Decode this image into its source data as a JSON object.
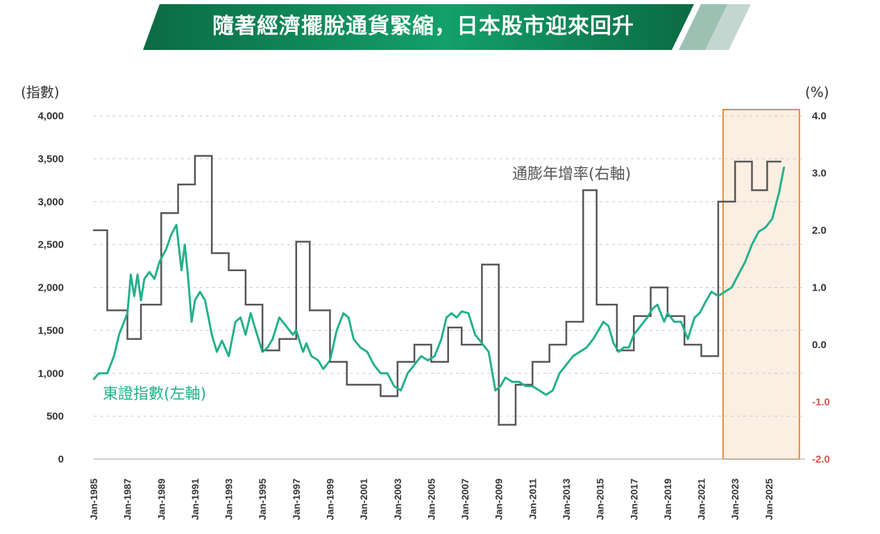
{
  "banner": {
    "title": "隨著經濟擺脫通貨緊縮，日本股市迎來回升",
    "colors": {
      "dark": "#0b6b43",
      "mid": "#13a06a",
      "light1": "#9cc1b3",
      "light2": "#c3d6cf"
    }
  },
  "chart_data": {
    "type": "line",
    "left_axis": {
      "unit": "(指數)",
      "ylim": [
        0,
        4000
      ],
      "ticks": [
        "0",
        "500",
        "1,000",
        "1,500",
        "2,000",
        "2,500",
        "3,000",
        "3,500",
        "4,000"
      ]
    },
    "right_axis": {
      "unit": "(%)",
      "ylim": [
        -2.0,
        4.0
      ],
      "ticks": [
        "-2.0",
        "-1.0",
        "0.0",
        "1.0",
        "2.0",
        "3.0",
        "4.0"
      ]
    },
    "x_ticks": [
      "Jan-1985",
      "Jan-1987",
      "Jan-1989",
      "Jan-1991",
      "Jan-1993",
      "Jan-1995",
      "Jan-1997",
      "Jan-1999",
      "Jan-2001",
      "Jan-2003",
      "Jan-2005",
      "Jan-2007",
      "Jan-2009",
      "Jan-2011",
      "Jan-2013",
      "Jan-2015",
      "Jan-2017",
      "Jan-2019",
      "Jan-2021",
      "Jan-2023",
      "Jan-2025"
    ],
    "x_range": [
      1985.0,
      2026.2
    ],
    "grid": "horizontal dashed",
    "highlight": {
      "x": [
        2022.0,
        2026.4
      ],
      "color": "#e08a3c"
    },
    "series": [
      {
        "name": "東證指數(左軸)",
        "axis": "left",
        "color": "#22b08a",
        "x": [
          1985.0,
          1985.3,
          1985.8,
          1986.2,
          1986.5,
          1986.8,
          1987.0,
          1987.2,
          1987.4,
          1987.6,
          1987.8,
          1988.0,
          1988.3,
          1988.6,
          1988.9,
          1989.3,
          1989.6,
          1989.9,
          1990.2,
          1990.4,
          1990.6,
          1990.8,
          1991.0,
          1991.3,
          1991.6,
          1992.0,
          1992.3,
          1992.6,
          1993.0,
          1993.4,
          1993.7,
          1994.0,
          1994.3,
          1994.6,
          1995.0,
          1995.3,
          1995.6,
          1996.0,
          1996.4,
          1996.8,
          1997.0,
          1997.4,
          1997.6,
          1997.9,
          1998.3,
          1998.6,
          1999.0,
          1999.4,
          1999.8,
          2000.1,
          2000.4,
          2000.8,
          2001.2,
          2001.6,
          2002.0,
          2002.4,
          2002.8,
          2003.2,
          2003.6,
          2004.0,
          2004.4,
          2004.8,
          2005.2,
          2005.6,
          2005.9,
          2006.2,
          2006.5,
          2006.8,
          2007.2,
          2007.6,
          2008.0,
          2008.4,
          2008.8,
          2009.1,
          2009.4,
          2009.8,
          2010.2,
          2010.6,
          2011.0,
          2011.4,
          2011.8,
          2012.2,
          2012.6,
          2013.0,
          2013.4,
          2013.8,
          2014.2,
          2014.6,
          2014.9,
          2015.2,
          2015.5,
          2015.8,
          2016.1,
          2016.4,
          2016.7,
          2017.0,
          2017.4,
          2017.8,
          2018.1,
          2018.4,
          2018.8,
          2019.0,
          2019.4,
          2019.8,
          2020.2,
          2020.6,
          2020.9,
          2021.3,
          2021.6,
          2022.0,
          2022.4,
          2022.8,
          2023.2,
          2023.6,
          2024.0,
          2024.4,
          2024.8,
          2025.2,
          2025.6,
          2025.9
        ],
        "values": [
          930,
          1000,
          1000,
          1200,
          1450,
          1600,
          1700,
          2150,
          1900,
          2150,
          1850,
          2100,
          2180,
          2100,
          2300,
          2450,
          2620,
          2730,
          2200,
          2500,
          2100,
          1600,
          1850,
          1950,
          1850,
          1450,
          1250,
          1380,
          1200,
          1600,
          1650,
          1450,
          1700,
          1500,
          1250,
          1300,
          1400,
          1650,
          1550,
          1450,
          1500,
          1250,
          1350,
          1200,
          1150,
          1050,
          1150,
          1500,
          1700,
          1650,
          1400,
          1300,
          1250,
          1100,
          1000,
          1000,
          850,
          800,
          1000,
          1100,
          1200,
          1150,
          1200,
          1400,
          1650,
          1700,
          1650,
          1720,
          1700,
          1450,
          1350,
          1250,
          800,
          850,
          950,
          900,
          900,
          850,
          850,
          800,
          750,
          800,
          1000,
          1100,
          1200,
          1250,
          1300,
          1400,
          1500,
          1600,
          1550,
          1350,
          1250,
          1300,
          1300,
          1450,
          1550,
          1650,
          1750,
          1800,
          1600,
          1700,
          1600,
          1600,
          1400,
          1650,
          1700,
          1850,
          1950,
          1900,
          1950,
          2000,
          2150,
          2300,
          2500,
          2650,
          2700,
          2800,
          3100,
          3400
        ]
      },
      {
        "name": "通膨年增率(右軸)",
        "axis": "right",
        "color": "#555555",
        "x": [
          1985.0,
          1985.8,
          1987.0,
          1987.8,
          1989.0,
          1990.0,
          1991.0,
          1992.0,
          1993.0,
          1994.0,
          1995.0,
          1996.0,
          1997.0,
          1997.8,
          1999.0,
          2000.0,
          2002.0,
          2003.0,
          2004.0,
          2005.0,
          2006.0,
          2006.8,
          2008.0,
          2009.0,
          2010.0,
          2011.0,
          2012.0,
          2013.0,
          2014.0,
          2014.8,
          2016.0,
          2017.0,
          2018.0,
          2019.0,
          2020.0,
          2021.0,
          2022.0,
          2023.0,
          2024.0,
          2024.9,
          2025.7
        ],
        "values": [
          2.0,
          0.6,
          0.1,
          0.7,
          2.3,
          2.8,
          3.3,
          1.6,
          1.3,
          0.7,
          -0.1,
          0.1,
          1.8,
          0.6,
          -0.3,
          -0.7,
          -0.9,
          -0.3,
          0.0,
          -0.3,
          0.3,
          0.0,
          1.4,
          -1.4,
          -0.7,
          -0.3,
          0.0,
          0.4,
          2.7,
          0.7,
          -0.1,
          0.5,
          1.0,
          0.5,
          0.0,
          -0.2,
          2.5,
          3.2,
          2.7,
          3.2,
          3.2
        ]
      }
    ]
  }
}
